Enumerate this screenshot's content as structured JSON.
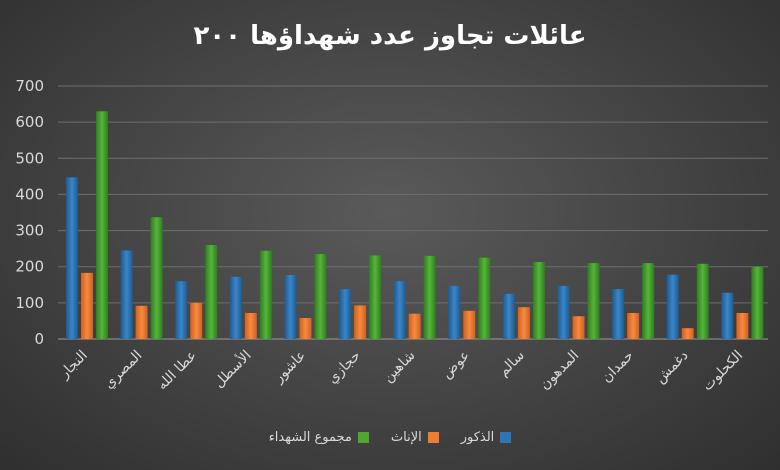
{
  "chart_data": {
    "type": "bar",
    "title": "عائلات تجاوز عدد شهداؤها ٢٠٠",
    "categories": [
      "النجار",
      "المصري",
      "عطا الله",
      "الأسطل",
      "عاشور",
      "حجازي",
      "شاهين",
      "عوض",
      "سالم",
      "المدهون",
      "حمدان",
      "دغمش",
      "الكحلوت"
    ],
    "series": [
      {
        "name": "الذكور",
        "color": "#2e75b6",
        "values": [
          447,
          245,
          160,
          172,
          177,
          138,
          160,
          147,
          125,
          147,
          138,
          178,
          128
        ]
      },
      {
        "name": "الإناث",
        "color": "#ed7d31",
        "values": [
          183,
          92,
          100,
          72,
          58,
          93,
          70,
          78,
          88,
          63,
          72,
          30,
          72
        ]
      },
      {
        "name": "مجموع الشهداء",
        "color": "#4ea72e",
        "values": [
          630,
          337,
          260,
          244,
          235,
          231,
          230,
          225,
          213,
          210,
          210,
          208,
          200
        ]
      }
    ],
    "ylim": [
      0,
      700
    ],
    "yticks": [
      0,
      100,
      200,
      300,
      400,
      500,
      600,
      700
    ],
    "grid": true,
    "legend_position": "bottom"
  }
}
